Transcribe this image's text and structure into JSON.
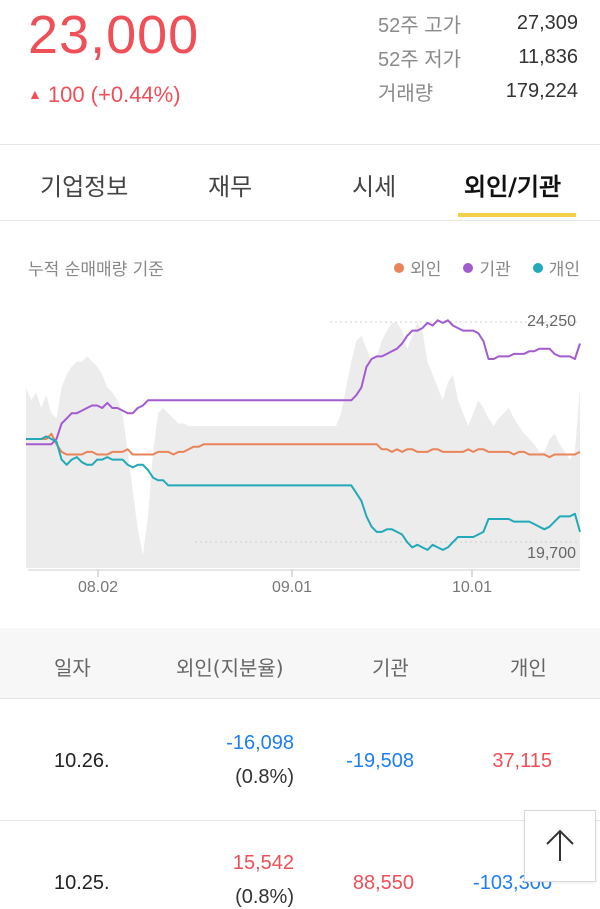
{
  "quote": {
    "price": "23,000",
    "change_arrow": "▲",
    "change": "100 (+0.44%)"
  },
  "stats": [
    {
      "label": "52주 고가",
      "value": "27,309"
    },
    {
      "label": "52주 저가",
      "value": "11,836"
    },
    {
      "label": "거래량",
      "value": "179,224"
    }
  ],
  "tabs": [
    {
      "label": "기업정보"
    },
    {
      "label": "재무"
    },
    {
      "label": "시세"
    },
    {
      "label": "외인/기관",
      "active": true
    }
  ],
  "chart": {
    "caption": "누적 순매매량 기준",
    "legend": [
      {
        "label": "외인",
        "color": "#e9845a"
      },
      {
        "label": "기관",
        "color": "#a35bd0"
      },
      {
        "label": "개인",
        "color": "#23a9b8"
      }
    ],
    "y_high_label": "24,250",
    "y_low_label": "19,700",
    "x_ticks": [
      "08.02",
      "09.01",
      "10.01"
    ]
  },
  "chart_data": {
    "type": "line",
    "title": "누적 순매매량 기준",
    "y_range": [
      19700,
      24250
    ],
    "x_ticks": [
      "08.02",
      "09.01",
      "10.01"
    ],
    "series": [
      {
        "name": "외인",
        "color": "#e9845a",
        "values": [
          0.5,
          0.5,
          0.5,
          0.5,
          0.5,
          0.48,
          0.52,
          0.55,
          0.56,
          0.56,
          0.56,
          0.56,
          0.55,
          0.55,
          0.56,
          0.56,
          0.56,
          0.55,
          0.55,
          0.55,
          0.54,
          0.56,
          0.56,
          0.56,
          0.56,
          0.56,
          0.55,
          0.55,
          0.55,
          0.56,
          0.55,
          0.55,
          0.54,
          0.53,
          0.53,
          0.52,
          0.52,
          0.52,
          0.52,
          0.52,
          0.52,
          0.52,
          0.52,
          0.52,
          0.52,
          0.52,
          0.52,
          0.52,
          0.52,
          0.52,
          0.52,
          0.52,
          0.52,
          0.52,
          0.52,
          0.52,
          0.52,
          0.52,
          0.52,
          0.52,
          0.52,
          0.52,
          0.52,
          0.52,
          0.52,
          0.52,
          0.52,
          0.52,
          0.52,
          0.52,
          0.54,
          0.54,
          0.55,
          0.54,
          0.55,
          0.54,
          0.54,
          0.55,
          0.55,
          0.55,
          0.54,
          0.54,
          0.55,
          0.55,
          0.55,
          0.55,
          0.55,
          0.54,
          0.55,
          0.54,
          0.54,
          0.55,
          0.55,
          0.55,
          0.55,
          0.55,
          0.56,
          0.55,
          0.55,
          0.56,
          0.56,
          0.56,
          0.56,
          0.57,
          0.56,
          0.56,
          0.56,
          0.56,
          0.56,
          0.55
        ]
      },
      {
        "name": "기관",
        "color": "#a35bd0",
        "values": [
          0.52,
          0.52,
          0.52,
          0.52,
          0.52,
          0.52,
          0.5,
          0.44,
          0.42,
          0.4,
          0.4,
          0.39,
          0.38,
          0.37,
          0.37,
          0.38,
          0.36,
          0.38,
          0.38,
          0.39,
          0.4,
          0.4,
          0.38,
          0.37,
          0.35,
          0.35,
          0.35,
          0.35,
          0.35,
          0.35,
          0.35,
          0.35,
          0.35,
          0.35,
          0.35,
          0.35,
          0.35,
          0.35,
          0.35,
          0.35,
          0.35,
          0.35,
          0.35,
          0.35,
          0.35,
          0.35,
          0.35,
          0.35,
          0.35,
          0.35,
          0.35,
          0.35,
          0.35,
          0.35,
          0.35,
          0.35,
          0.35,
          0.35,
          0.35,
          0.35,
          0.35,
          0.35,
          0.35,
          0.35,
          0.35,
          0.33,
          0.3,
          0.22,
          0.19,
          0.18,
          0.18,
          0.17,
          0.16,
          0.15,
          0.13,
          0.1,
          0.08,
          0.08,
          0.07,
          0.05,
          0.06,
          0.04,
          0.05,
          0.04,
          0.06,
          0.07,
          0.08,
          0.08,
          0.08,
          0.09,
          0.12,
          0.19,
          0.19,
          0.18,
          0.18,
          0.18,
          0.17,
          0.17,
          0.17,
          0.16,
          0.16,
          0.15,
          0.15,
          0.15,
          0.17,
          0.18,
          0.18,
          0.18,
          0.19,
          0.13
        ]
      },
      {
        "name": "개인",
        "color": "#23a9b8",
        "values": [
          0.5,
          0.5,
          0.5,
          0.5,
          0.49,
          0.5,
          0.51,
          0.58,
          0.6,
          0.58,
          0.57,
          0.59,
          0.6,
          0.6,
          0.58,
          0.58,
          0.57,
          0.58,
          0.58,
          0.58,
          0.6,
          0.61,
          0.6,
          0.6,
          0.62,
          0.65,
          0.66,
          0.66,
          0.68,
          0.68,
          0.68,
          0.68,
          0.68,
          0.68,
          0.68,
          0.68,
          0.68,
          0.68,
          0.68,
          0.68,
          0.68,
          0.68,
          0.68,
          0.68,
          0.68,
          0.68,
          0.68,
          0.68,
          0.68,
          0.68,
          0.68,
          0.68,
          0.68,
          0.68,
          0.68,
          0.68,
          0.68,
          0.68,
          0.68,
          0.68,
          0.68,
          0.68,
          0.68,
          0.68,
          0.68,
          0.71,
          0.74,
          0.8,
          0.84,
          0.86,
          0.86,
          0.85,
          0.85,
          0.86,
          0.87,
          0.9,
          0.92,
          0.91,
          0.92,
          0.93,
          0.91,
          0.92,
          0.93,
          0.92,
          0.9,
          0.88,
          0.88,
          0.88,
          0.88,
          0.87,
          0.86,
          0.81,
          0.81,
          0.81,
          0.81,
          0.81,
          0.82,
          0.82,
          0.82,
          0.82,
          0.83,
          0.84,
          0.85,
          0.84,
          0.82,
          0.8,
          0.8,
          0.8,
          0.79,
          0.86
        ]
      }
    ],
    "price_area": {
      "color": "#ececec"
    }
  },
  "table": {
    "headers": [
      "일자",
      "외인(지분율)",
      "기관",
      "개인"
    ],
    "rows": [
      {
        "date": "10.26.",
        "foreign": "-16,098",
        "foreign_pct": "(0.8%)",
        "institution": "-19,508",
        "individual": "37,115"
      },
      {
        "date": "10.25.",
        "foreign": "15,542",
        "foreign_pct": "(0.8%)",
        "institution": "88,550",
        "individual": "-103,300"
      }
    ]
  }
}
